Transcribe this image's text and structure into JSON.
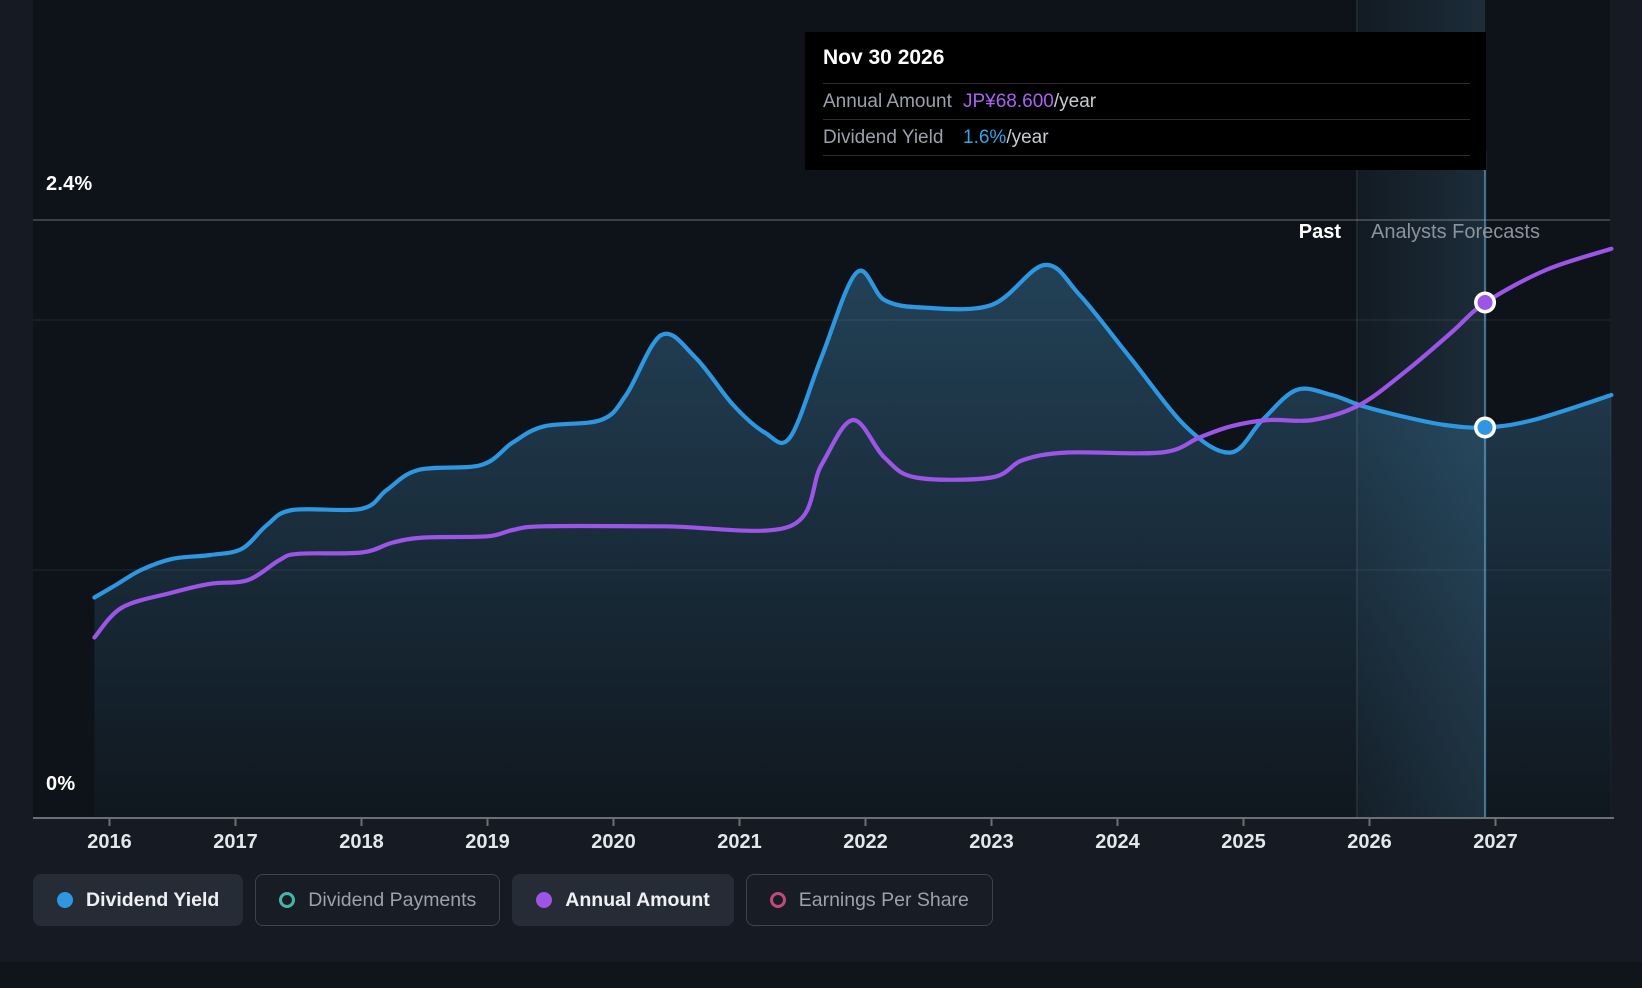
{
  "tooltip": {
    "date": "Nov 30 2026",
    "rows": [
      {
        "label": "Annual Amount",
        "value": "JP¥68.600",
        "suffix": "/year",
        "value_color": "#a863f2"
      },
      {
        "label": "Dividend Yield",
        "value": "1.6%",
        "suffix": "/year",
        "value_color": "#35a3ea"
      }
    ]
  },
  "legend": {
    "items": [
      {
        "label": "Dividend Yield",
        "color": "#2e97e2",
        "marker": "filled",
        "active": true
      },
      {
        "label": "Dividend Payments",
        "color": "#45b5aa",
        "marker": "ring",
        "active": false
      },
      {
        "label": "Annual Amount",
        "color": "#9c55e6",
        "marker": "filled",
        "active": true
      },
      {
        "label": "Earnings Per Share",
        "color": "#c2497f",
        "marker": "ring",
        "active": false
      }
    ]
  },
  "chart_data": {
    "type": "area",
    "title": "",
    "xlabel": "",
    "ylabel": "",
    "x_ticks": [
      {
        "label": "2016",
        "year": 2016
      },
      {
        "label": "2017",
        "year": 2017
      },
      {
        "label": "2018",
        "year": 2018
      },
      {
        "label": "2019",
        "year": 2019
      },
      {
        "label": "2020",
        "year": 2020
      },
      {
        "label": "2021",
        "year": 2021
      },
      {
        "label": "2022",
        "year": 2022
      },
      {
        "label": "2023",
        "year": 2023
      },
      {
        "label": "2024",
        "year": 2024
      },
      {
        "label": "2025",
        "year": 2025
      },
      {
        "label": "2026",
        "year": 2026
      },
      {
        "label": "2027",
        "year": 2027
      }
    ],
    "x_range": [
      2015.42,
      2027.95
    ],
    "ylim": [
      0,
      2.4
    ],
    "y_gridlines": [
      {
        "pct": 2.4,
        "label": "2.4%",
        "strong": true
      },
      {
        "pct": 2.0
      },
      {
        "pct": 1.0
      },
      {
        "pct": 0.0,
        "label": "0%",
        "axis": true
      }
    ],
    "annotations": {
      "past_label": "Past",
      "forecast_label": "Analysts Forecasts",
      "divider_year": 2025.9
    },
    "cursor": {
      "date": "Nov 30 2026",
      "year": 2026.917,
      "markers": [
        {
          "series": "Annual Amount",
          "pct": 2.07,
          "color": "#9c55e6",
          "displayed_value": "JP¥68.600/year"
        },
        {
          "series": "Dividend Yield",
          "pct": 1.57,
          "color": "#2e97e2",
          "displayed_value": "1.6%/year"
        }
      ]
    },
    "series": [
      {
        "name": "Dividend Yield",
        "color": "#2e97e2",
        "style": "line_with_area",
        "unit": "percent",
        "points": [
          [
            2015.88,
            0.89
          ],
          [
            2016.05,
            0.94
          ],
          [
            2016.25,
            1.0
          ],
          [
            2016.5,
            1.045
          ],
          [
            2016.8,
            1.06
          ],
          [
            2017.05,
            1.085
          ],
          [
            2017.25,
            1.18
          ],
          [
            2017.45,
            1.24
          ],
          [
            2018.0,
            1.245
          ],
          [
            2018.2,
            1.32
          ],
          [
            2018.45,
            1.4
          ],
          [
            2018.95,
            1.42
          ],
          [
            2019.2,
            1.51
          ],
          [
            2019.45,
            1.575
          ],
          [
            2019.9,
            1.6
          ],
          [
            2020.1,
            1.7
          ],
          [
            2020.38,
            1.94
          ],
          [
            2020.65,
            1.85
          ],
          [
            2020.95,
            1.66
          ],
          [
            2021.2,
            1.55
          ],
          [
            2021.4,
            1.53
          ],
          [
            2021.65,
            1.85
          ],
          [
            2021.93,
            2.19
          ],
          [
            2022.15,
            2.08
          ],
          [
            2022.45,
            2.05
          ],
          [
            2023.0,
            2.06
          ],
          [
            2023.42,
            2.22
          ],
          [
            2023.7,
            2.1
          ],
          [
            2024.1,
            1.85
          ],
          [
            2024.55,
            1.57
          ],
          [
            2024.9,
            1.47
          ],
          [
            2025.15,
            1.6
          ],
          [
            2025.42,
            1.72
          ],
          [
            2025.7,
            1.7
          ],
          [
            2025.95,
            1.655
          ],
          [
            2026.3,
            1.61
          ],
          [
            2026.6,
            1.58
          ],
          [
            2026.92,
            1.57
          ],
          [
            2027.3,
            1.6
          ],
          [
            2027.92,
            1.7
          ]
        ]
      },
      {
        "name": "Annual Amount",
        "color": "#9c55e6",
        "style": "line",
        "unit": "visual_pct_scale",
        "points": [
          [
            2015.88,
            0.73
          ],
          [
            2016.1,
            0.85
          ],
          [
            2016.5,
            0.91
          ],
          [
            2016.8,
            0.945
          ],
          [
            2017.1,
            0.96
          ],
          [
            2017.35,
            1.04
          ],
          [
            2017.5,
            1.065
          ],
          [
            2018.0,
            1.07
          ],
          [
            2018.25,
            1.11
          ],
          [
            2018.5,
            1.13
          ],
          [
            2019.0,
            1.135
          ],
          [
            2019.2,
            1.16
          ],
          [
            2019.45,
            1.175
          ],
          [
            2020.4,
            1.175
          ],
          [
            2021.4,
            1.175
          ],
          [
            2021.65,
            1.42
          ],
          [
            2021.9,
            1.6
          ],
          [
            2022.15,
            1.45
          ],
          [
            2022.4,
            1.37
          ],
          [
            2023.0,
            1.37
          ],
          [
            2023.25,
            1.44
          ],
          [
            2023.6,
            1.47
          ],
          [
            2024.35,
            1.47
          ],
          [
            2024.65,
            1.53
          ],
          [
            2024.9,
            1.575
          ],
          [
            2025.2,
            1.6
          ],
          [
            2025.55,
            1.6
          ],
          [
            2025.92,
            1.66
          ],
          [
            2026.3,
            1.8
          ],
          [
            2026.65,
            1.95
          ],
          [
            2026.92,
            2.07
          ],
          [
            2027.4,
            2.2
          ],
          [
            2027.92,
            2.285
          ]
        ]
      }
    ]
  }
}
